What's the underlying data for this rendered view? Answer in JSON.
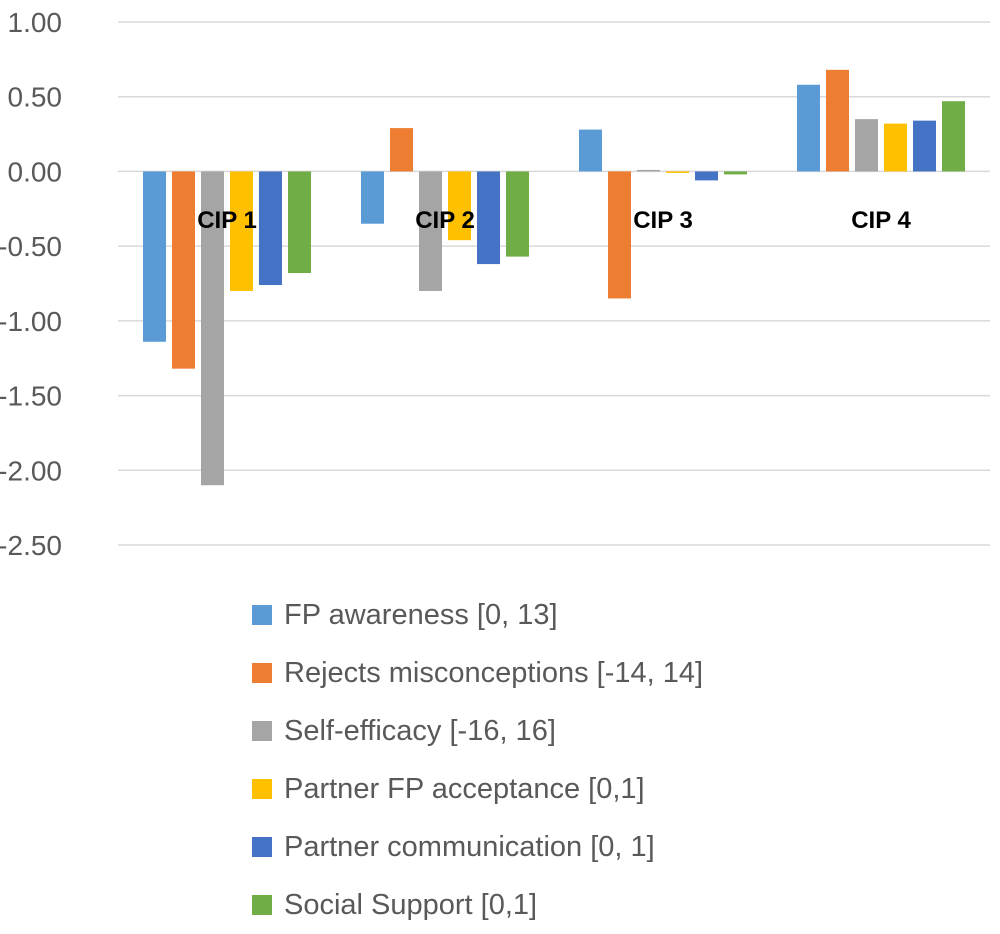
{
  "chart_data": {
    "type": "bar",
    "title": "",
    "xlabel": "",
    "ylabel": "",
    "categories": [
      "CIP 1",
      "CIP 2",
      "CIP 3",
      "CIP 4"
    ],
    "ylim": [
      -2.5,
      1.0
    ],
    "yticks": [
      "1.00",
      "0.50",
      "0.00",
      "-0.50",
      "-1.00",
      "-1.50",
      "-2.00",
      "-2.50"
    ],
    "ytick_values": [
      1.0,
      0.5,
      0.0,
      -0.5,
      -1.0,
      -1.5,
      -2.0,
      -2.5
    ],
    "grid": true,
    "legend_position": "bottom",
    "series": [
      {
        "name": "FP awareness [0, 13]",
        "color": "#5B9BD5",
        "values": [
          -1.14,
          -0.35,
          0.28,
          0.58
        ]
      },
      {
        "name": "Rejects misconceptions [-14, 14]",
        "color": "#ED7D31",
        "values": [
          -1.32,
          0.29,
          -0.85,
          0.68
        ]
      },
      {
        "name": "Self-efficacy [-16, 16]",
        "color": "#A5A5A5",
        "values": [
          -2.1,
          -0.8,
          0.01,
          0.35
        ]
      },
      {
        "name": "Partner FP acceptance [0,1]",
        "color": "#FFC000",
        "values": [
          -0.8,
          -0.46,
          -0.01,
          0.32
        ]
      },
      {
        "name": "Partner communication [0, 1]",
        "color": "#4472C4",
        "values": [
          -0.76,
          -0.62,
          -0.06,
          0.34
        ]
      },
      {
        "name": "Social Support [0,1]",
        "color": "#70AD47",
        "values": [
          -0.68,
          -0.57,
          -0.02,
          0.47
        ]
      }
    ]
  }
}
